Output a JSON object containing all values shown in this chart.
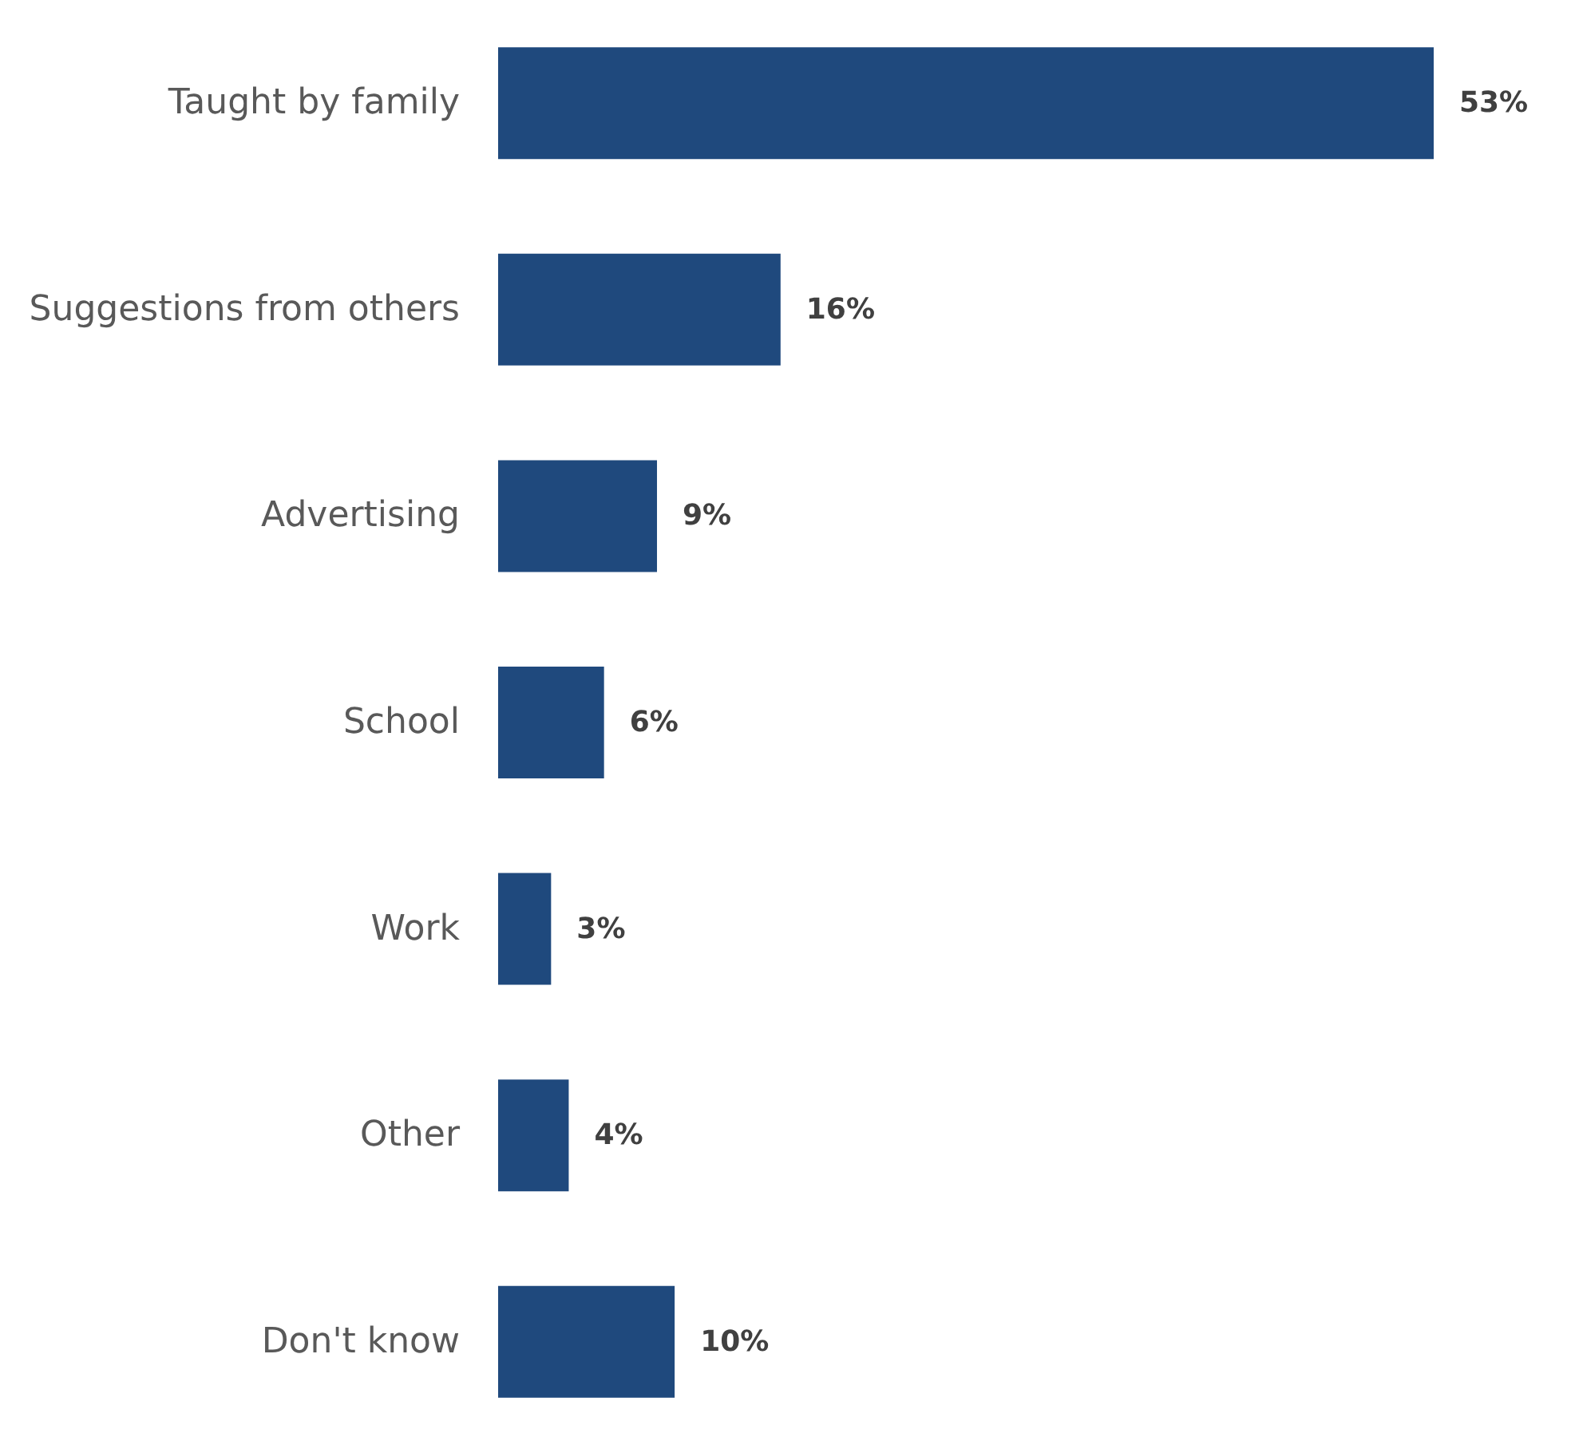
{
  "chart_data": {
    "type": "bar",
    "orientation": "horizontal",
    "categories": [
      "Taught by family",
      "Suggestions from others",
      "Advertising",
      "School",
      "Work",
      "Other",
      "Don't know"
    ],
    "values": [
      53,
      16,
      9,
      6,
      3,
      4,
      10
    ],
    "value_labels": [
      "53%",
      "16%",
      "9%",
      "6%",
      "3%",
      "4%",
      "10%"
    ],
    "color": "#1f497d"
  }
}
